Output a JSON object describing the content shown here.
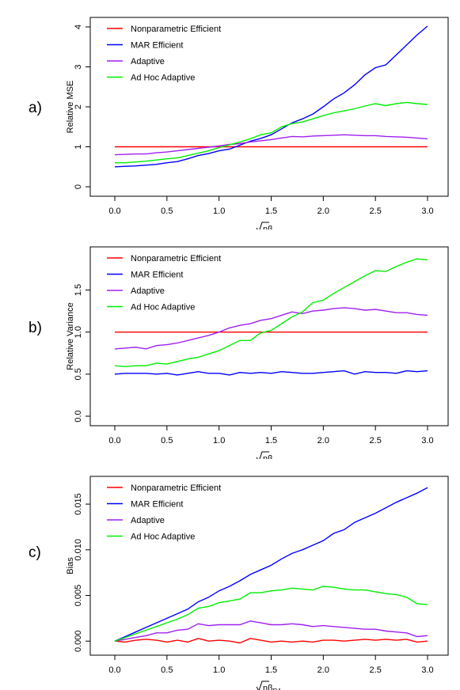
{
  "legend_labels": [
    "Nonparametric Efficient",
    "MAR Efficient",
    "Adaptive",
    "Ad Hoc Adaptive"
  ],
  "xlabel": {
    "root": "n",
    "beta": "β",
    "sub": "RA"
  },
  "chart_data": [
    {
      "type": "line",
      "panel_label": "a)",
      "ylabel": "Relative MSE",
      "xlim": [
        0,
        3
      ],
      "ylim": [
        0,
        4
      ],
      "xticks": [
        "0.0",
        "0.5",
        "1.0",
        "1.5",
        "2.0",
        "2.5",
        "3.0"
      ],
      "xtick_values": [
        0,
        0.5,
        1,
        1.5,
        2,
        2.5,
        3
      ],
      "yticks": [
        "0",
        "1",
        "2",
        "3",
        "4"
      ],
      "ytick_values": [
        0,
        1,
        2,
        3,
        4
      ],
      "legend_position": "top-left",
      "x": [
        0,
        0.1,
        0.2,
        0.3,
        0.4,
        0.5,
        0.6,
        0.7,
        0.8,
        0.9,
        1.0,
        1.1,
        1.2,
        1.3,
        1.4,
        1.5,
        1.6,
        1.7,
        1.8,
        1.9,
        2.0,
        2.1,
        2.2,
        2.3,
        2.4,
        2.5,
        2.6,
        2.7,
        2.8,
        2.9,
        3.0
      ],
      "series": [
        {
          "name": "Nonparametric Efficient",
          "color": "#ff0000",
          "values": [
            1,
            1,
            1,
            1,
            1,
            1,
            1,
            1,
            1,
            1,
            1,
            1,
            1,
            1,
            1,
            1,
            1,
            1,
            1,
            1,
            1,
            1,
            1,
            1,
            1,
            1,
            1,
            1,
            1,
            1,
            1
          ]
        },
        {
          "name": "MAR Efficient",
          "color": "#0000ff",
          "values": [
            0.5,
            0.51,
            0.52,
            0.54,
            0.56,
            0.6,
            0.63,
            0.7,
            0.78,
            0.83,
            0.9,
            0.94,
            1.04,
            1.14,
            1.21,
            1.3,
            1.45,
            1.6,
            1.7,
            1.82,
            2.0,
            2.2,
            2.35,
            2.55,
            2.8,
            2.98,
            3.05,
            3.3,
            3.55,
            3.8,
            4.02
          ]
        },
        {
          "name": "Adaptive",
          "color": "#a020f0",
          "values": [
            0.8,
            0.81,
            0.82,
            0.82,
            0.85,
            0.87,
            0.9,
            0.93,
            0.96,
            0.99,
            1.02,
            1.06,
            1.08,
            1.12,
            1.15,
            1.18,
            1.22,
            1.26,
            1.25,
            1.27,
            1.28,
            1.29,
            1.3,
            1.29,
            1.28,
            1.28,
            1.26,
            1.25,
            1.24,
            1.22,
            1.2
          ]
        },
        {
          "name": "Ad Hoc Adaptive",
          "color": "#00ee00",
          "values": [
            0.6,
            0.6,
            0.62,
            0.64,
            0.67,
            0.7,
            0.72,
            0.78,
            0.84,
            0.9,
            0.98,
            1.05,
            1.12,
            1.2,
            1.3,
            1.35,
            1.5,
            1.58,
            1.62,
            1.7,
            1.78,
            1.85,
            1.9,
            1.95,
            2.02,
            2.08,
            2.03,
            2.08,
            2.11,
            2.08,
            2.06
          ]
        }
      ]
    },
    {
      "type": "line",
      "panel_label": "b)",
      "ylabel": "Relative Variance",
      "xlim": [
        0,
        3
      ],
      "ylim": [
        0,
        1.9
      ],
      "xticks": [
        "0.0",
        "0.5",
        "1.0",
        "1.5",
        "2.0",
        "2.5",
        "3.0"
      ],
      "xtick_values": [
        0,
        0.5,
        1,
        1.5,
        2,
        2.5,
        3
      ],
      "yticks": [
        "0.0",
        "0.5",
        "1.0",
        "1.5"
      ],
      "ytick_values": [
        0,
        0.5,
        1.0,
        1.5
      ],
      "legend_position": "top-left",
      "x": [
        0,
        0.1,
        0.2,
        0.3,
        0.4,
        0.5,
        0.6,
        0.7,
        0.8,
        0.9,
        1.0,
        1.1,
        1.2,
        1.3,
        1.4,
        1.5,
        1.6,
        1.7,
        1.8,
        1.9,
        2.0,
        2.1,
        2.2,
        2.3,
        2.4,
        2.5,
        2.6,
        2.7,
        2.8,
        2.9,
        3.0
      ],
      "series": [
        {
          "name": "Nonparametric Efficient",
          "color": "#ff0000",
          "values": [
            1,
            1,
            1,
            1,
            1,
            1,
            1,
            1,
            1,
            1,
            1,
            1,
            1,
            1,
            1,
            1,
            1,
            1,
            1,
            1,
            1,
            1,
            1,
            1,
            1,
            1,
            1,
            1,
            1,
            1,
            1
          ]
        },
        {
          "name": "MAR Efficient",
          "color": "#0000ff",
          "values": [
            0.5,
            0.51,
            0.51,
            0.51,
            0.5,
            0.51,
            0.49,
            0.51,
            0.53,
            0.51,
            0.51,
            0.49,
            0.52,
            0.51,
            0.52,
            0.51,
            0.53,
            0.52,
            0.51,
            0.51,
            0.52,
            0.53,
            0.54,
            0.5,
            0.53,
            0.52,
            0.52,
            0.51,
            0.54,
            0.53,
            0.54
          ]
        },
        {
          "name": "Adaptive",
          "color": "#a020f0",
          "values": [
            0.8,
            0.81,
            0.82,
            0.8,
            0.84,
            0.85,
            0.87,
            0.9,
            0.93,
            0.96,
            1.0,
            1.05,
            1.08,
            1.1,
            1.14,
            1.16,
            1.2,
            1.24,
            1.22,
            1.25,
            1.26,
            1.28,
            1.29,
            1.28,
            1.26,
            1.27,
            1.25,
            1.23,
            1.23,
            1.21,
            1.2
          ]
        },
        {
          "name": "Ad Hoc Adaptive",
          "color": "#00ee00",
          "values": [
            0.6,
            0.59,
            0.6,
            0.6,
            0.63,
            0.62,
            0.65,
            0.68,
            0.7,
            0.74,
            0.78,
            0.84,
            0.9,
            0.9,
            0.99,
            1.02,
            1.1,
            1.18,
            1.24,
            1.35,
            1.38,
            1.46,
            1.53,
            1.6,
            1.67,
            1.73,
            1.72,
            1.78,
            1.83,
            1.87,
            1.86
          ]
        }
      ]
    },
    {
      "type": "line",
      "panel_label": "c)",
      "ylabel": "Bias",
      "xlim": [
        0,
        3
      ],
      "ylim": [
        -0.0005,
        0.017
      ],
      "xticks": [
        "0.0",
        "0.5",
        "1.0",
        "1.5",
        "2.0",
        "2.5",
        "3.0"
      ],
      "xtick_values": [
        0,
        0.5,
        1,
        1.5,
        2,
        2.5,
        3
      ],
      "yticks": [
        "0.000",
        "0.005",
        "0.010",
        "0.015"
      ],
      "ytick_values": [
        0,
        0.005,
        0.01,
        0.015
      ],
      "legend_position": "top-left",
      "x": [
        0,
        0.1,
        0.2,
        0.3,
        0.4,
        0.5,
        0.6,
        0.7,
        0.8,
        0.9,
        1.0,
        1.1,
        1.2,
        1.3,
        1.4,
        1.5,
        1.6,
        1.7,
        1.8,
        1.9,
        2.0,
        2.1,
        2.2,
        2.3,
        2.4,
        2.5,
        2.6,
        2.7,
        2.8,
        2.9,
        3.0
      ],
      "series": [
        {
          "name": "Nonparametric Efficient",
          "color": "#ff0000",
          "values": [
            0,
            -0.0001,
            0.0001,
            0.0002,
            0.0001,
            -0.0001,
            0.0001,
            -0.0001,
            0.0003,
            0,
            0.0001,
            0,
            -0.0002,
            0.0003,
            0.0001,
            -0.0001,
            0,
            -0.0001,
            0,
            -0.0001,
            0.0001,
            0.0001,
            0,
            0.0001,
            0.0002,
            0.0001,
            0.0002,
            0.0001,
            0.0002,
            -0.0001,
            0
          ]
        },
        {
          "name": "MAR Efficient",
          "color": "#0000ff",
          "values": [
            0,
            0.0005,
            0.001,
            0.0015,
            0.002,
            0.0025,
            0.003,
            0.0035,
            0.0043,
            0.0048,
            0.0055,
            0.006,
            0.0066,
            0.0073,
            0.0078,
            0.0083,
            0.009,
            0.0096,
            0.01,
            0.0105,
            0.011,
            0.0118,
            0.0122,
            0.013,
            0.0135,
            0.014,
            0.0146,
            0.0152,
            0.0157,
            0.0162,
            0.0168
          ]
        },
        {
          "name": "Adaptive",
          "color": "#a020f0",
          "values": [
            0,
            0.0002,
            0.0004,
            0.0006,
            0.0009,
            0.0009,
            0.0012,
            0.0013,
            0.0019,
            0.0017,
            0.0018,
            0.0018,
            0.0018,
            0.0022,
            0.002,
            0.0018,
            0.0018,
            0.0019,
            0.0018,
            0.0016,
            0.0017,
            0.0016,
            0.0015,
            0.0014,
            0.0013,
            0.0013,
            0.0011,
            0.001,
            0.0009,
            0.0005,
            0.0006
          ]
        },
        {
          "name": "Ad Hoc Adaptive",
          "color": "#00ee00",
          "values": [
            0,
            0.0004,
            0.0008,
            0.0012,
            0.0016,
            0.002,
            0.0024,
            0.0029,
            0.0036,
            0.0038,
            0.0042,
            0.0044,
            0.0046,
            0.0053,
            0.0053,
            0.0055,
            0.0056,
            0.0058,
            0.0057,
            0.0056,
            0.006,
            0.0059,
            0.0057,
            0.0056,
            0.0056,
            0.0054,
            0.0052,
            0.0051,
            0.0048,
            0.0041,
            0.004
          ]
        }
      ]
    }
  ]
}
